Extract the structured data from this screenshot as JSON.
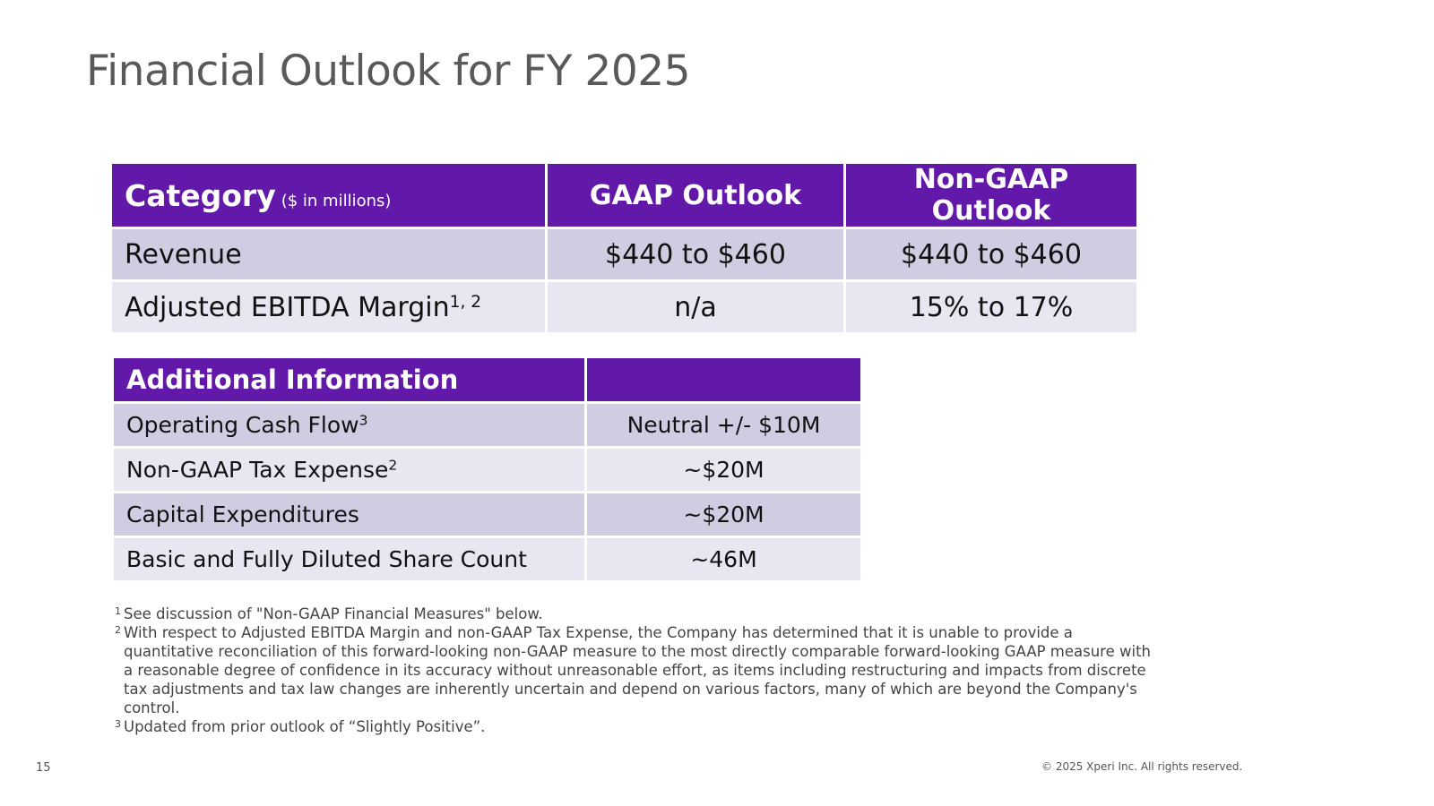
{
  "title": "Financial Outlook for FY 2025",
  "outlook_table": {
    "headers": {
      "category": "Category",
      "unit": "($ in millions)",
      "gaap": "GAAP Outlook",
      "non_gaap": "Non-GAAP Outlook"
    },
    "rows": [
      {
        "label": "Revenue",
        "sup": "",
        "gaap": "$440 to $460",
        "non_gaap": "$440 to $460"
      },
      {
        "label": "Adjusted EBITDA Margin",
        "sup": "1, 2",
        "gaap": "n/a",
        "non_gaap": "15% to 17%"
      }
    ]
  },
  "additional_table": {
    "header": "Additional Information",
    "header_value": "",
    "rows": [
      {
        "label": "Operating Cash Flow",
        "sup": "3",
        "value": "Neutral +/- $10M"
      },
      {
        "label": "Non-GAAP Tax Expense",
        "sup": "2",
        "value": "~$20M"
      },
      {
        "label": "Capital Expenditures",
        "sup": "",
        "value": "~$20M"
      },
      {
        "label": "Basic and Fully Diluted Share Count",
        "sup": "",
        "value": "~46M"
      }
    ]
  },
  "footnotes": [
    {
      "marker": "1",
      "text": "See discussion of \"Non-GAAP Financial Measures\" below."
    },
    {
      "marker": "2",
      "text": "With respect to Adjusted EBITDA Margin and non-GAAP Tax Expense, the Company has determined that it is unable to provide a quantitative reconciliation of this forward-looking non-GAAP measure to the most directly comparable forward-looking GAAP measure with a reasonable degree of confidence in its accuracy without unreasonable effort, as items including restructuring and impacts from discrete tax adjustments and tax law changes are inherently uncertain and depend on various factors, many of which are beyond the Company's control."
    },
    {
      "marker": "3",
      "text": "Updated from prior outlook of “Slightly Positive”."
    }
  ],
  "page_number": "15",
  "copyright": "© 2025 Xperi Inc. All rights reserved.",
  "colors": {
    "header_purple": "#6219a9",
    "row_dark": "#d0cde3",
    "row_light": "#e8e6f1",
    "title_gray": "#595959"
  }
}
